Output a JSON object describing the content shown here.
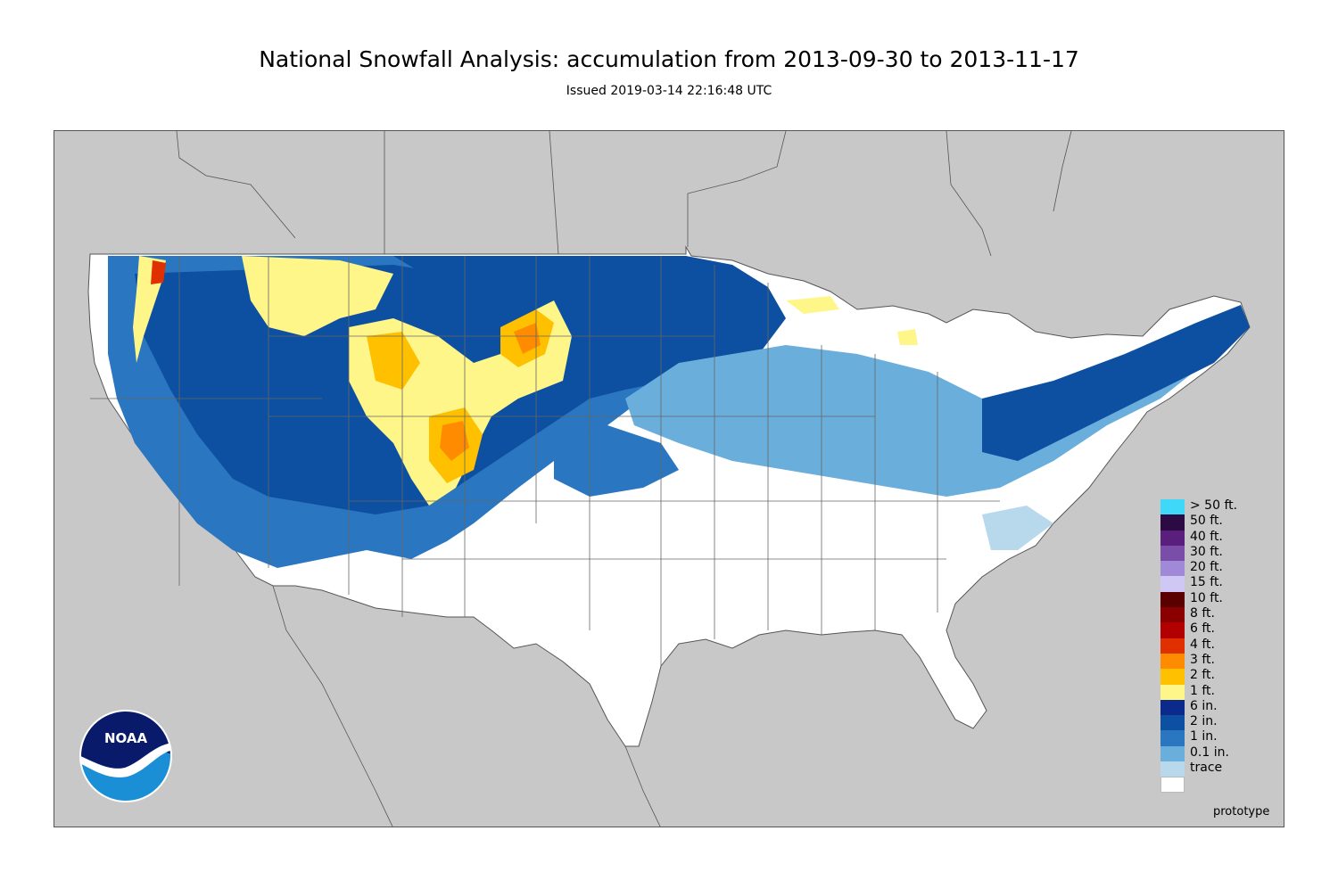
{
  "title": "National Snowfall Analysis: accumulation from 2013-09-30 to 2013-11-17",
  "subtitle": "Issued 2019-03-14 22:16:48 UTC",
  "footer_note": "prototype",
  "logo": {
    "text": "NOAA",
    "colors": {
      "top": "#0a1a6b",
      "bottom": "#1a8fd6"
    }
  },
  "colors": {
    "background_outside_us": "#c8c8c8",
    "boundary_lines": "#555555"
  },
  "legend": {
    "items": [
      {
        "label": "> 50 ft.",
        "color": "#40d8f8"
      },
      {
        "label": "50 ft.",
        "color": "#2c0a44"
      },
      {
        "label": "40 ft.",
        "color": "#5a1e7c"
      },
      {
        "label": "30 ft.",
        "color": "#7a4ea8"
      },
      {
        "label": "20 ft.",
        "color": "#a08ad8"
      },
      {
        "label": "15 ft.",
        "color": "#d0c8f4"
      },
      {
        "label": "10 ft.",
        "color": "#5a0000"
      },
      {
        "label": "8 ft.",
        "color": "#8a0000"
      },
      {
        "label": "6 ft.",
        "color": "#b20000"
      },
      {
        "label": "4 ft.",
        "color": "#e03000"
      },
      {
        "label": "3 ft.",
        "color": "#ff8c00"
      },
      {
        "label": "2 ft.",
        "color": "#ffc000"
      },
      {
        "label": "1 ft.",
        "color": "#fff68a"
      },
      {
        "label": "6 in.",
        "color": "#0c2a8c"
      },
      {
        "label": "2 in.",
        "color": "#0d4fa0"
      },
      {
        "label": "1 in.",
        "color": "#2a76c0"
      },
      {
        "label": "0.1 in.",
        "color": "#6aaedc"
      },
      {
        "label": "trace",
        "color": "#b8d8ec"
      },
      {
        "label": "",
        "color": "#ffffff"
      }
    ]
  }
}
